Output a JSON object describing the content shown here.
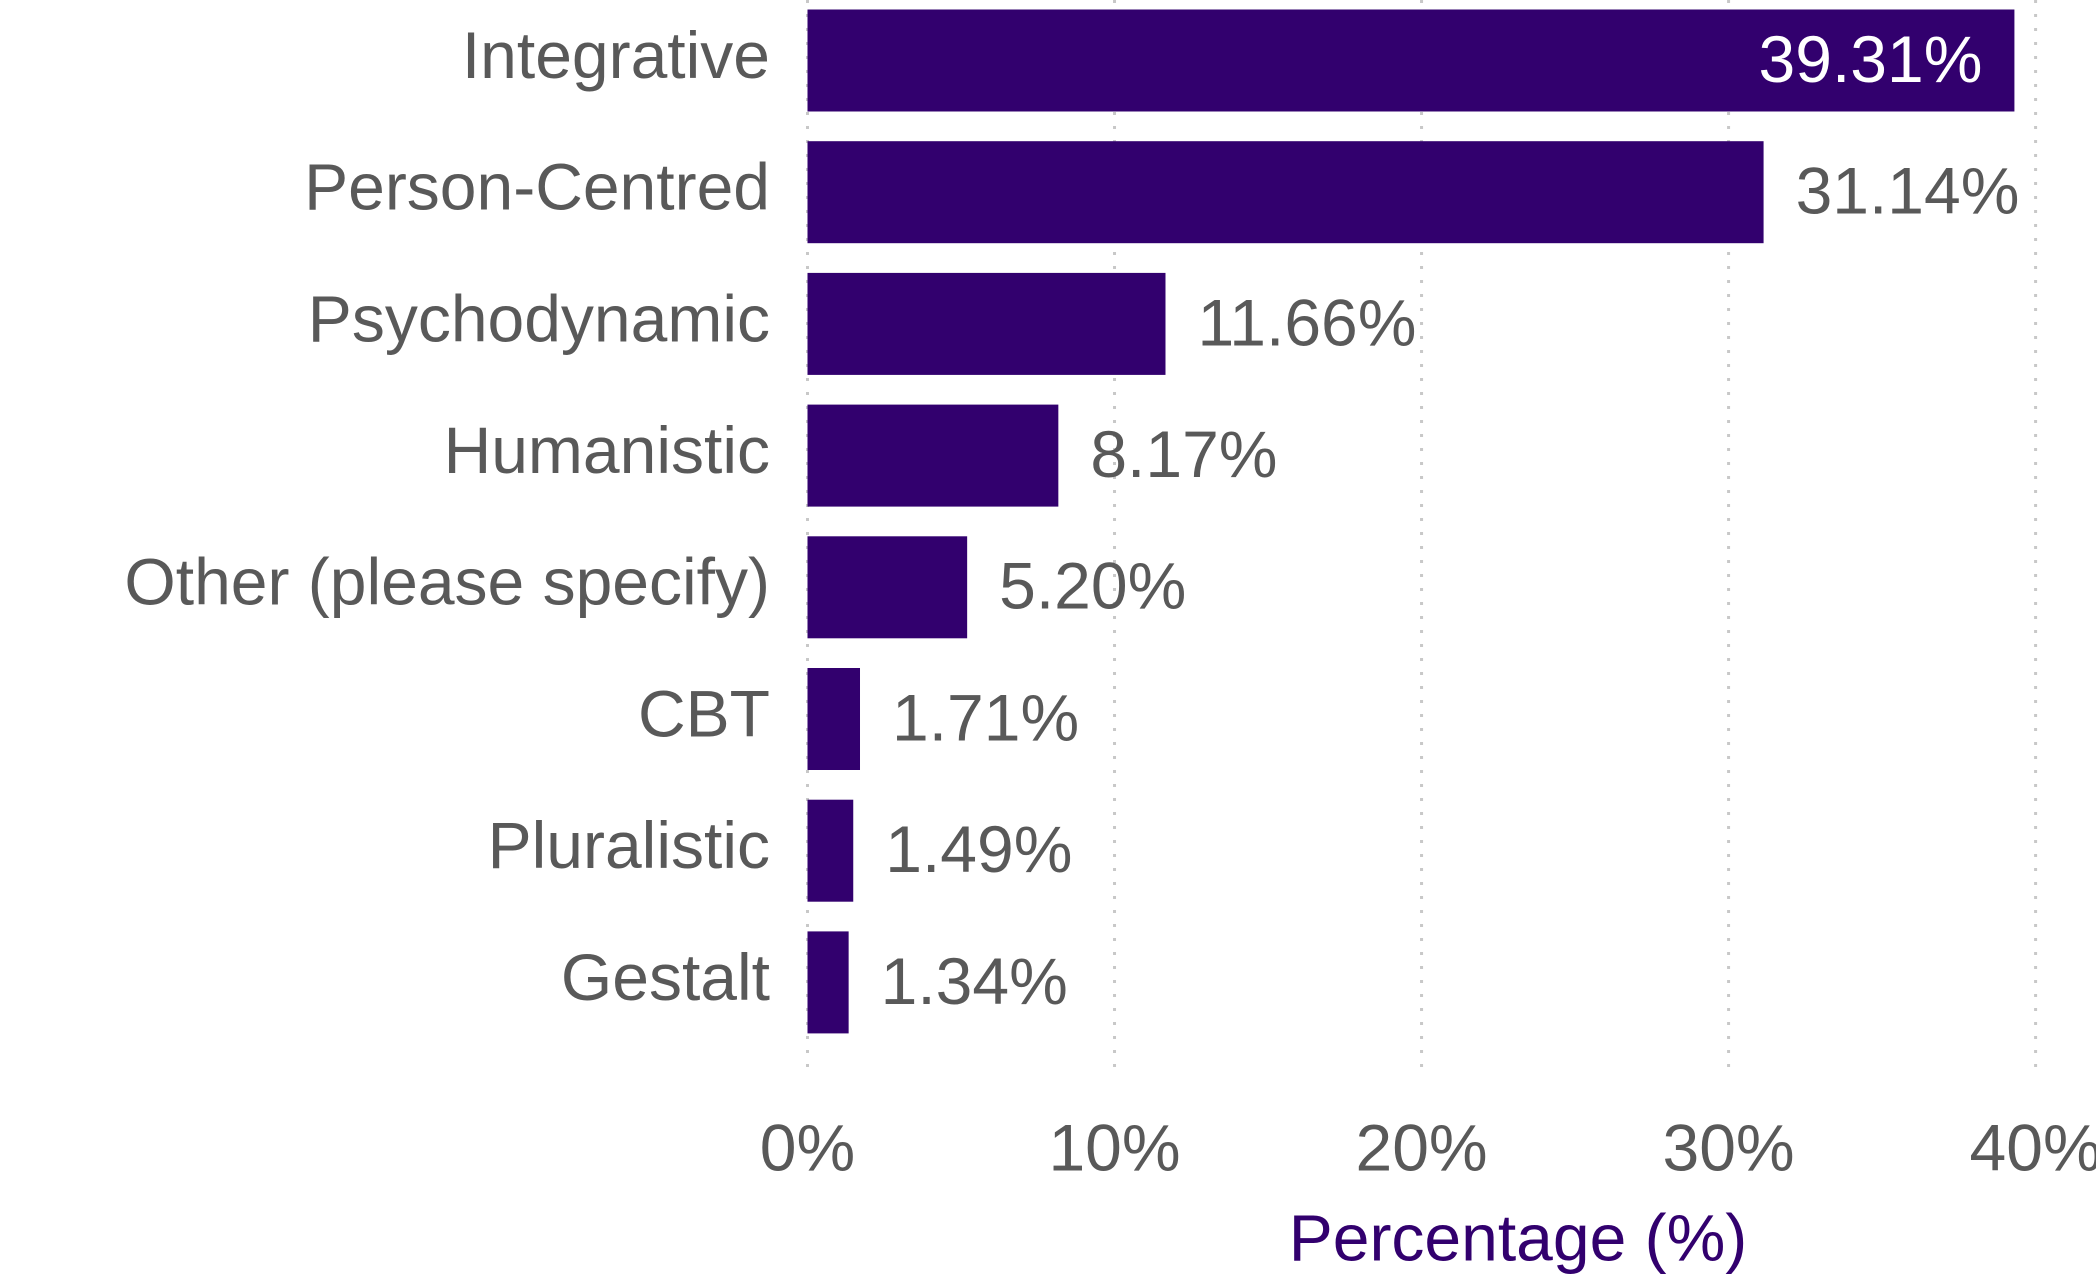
{
  "chart_data": {
    "type": "bar",
    "orientation": "horizontal",
    "categories": [
      "Integrative",
      "Person-Centred",
      "Psychodynamic",
      "Humanistic",
      "Other (please specify)",
      "CBT",
      "Pluralistic",
      "Gestalt"
    ],
    "values": [
      39.31,
      31.14,
      11.66,
      8.17,
      5.2,
      1.71,
      1.49,
      1.34
    ],
    "value_labels": [
      "39.31%",
      "31.14%",
      "11.66%",
      "8.17%",
      "5.20%",
      "1.71%",
      "1.49%",
      "1.34%"
    ],
    "color": "#32006e",
    "xlim": [
      0,
      40
    ],
    "xticks": [
      {
        "value": 0,
        "label": "0%"
      },
      {
        "value": 10,
        "label": "10%"
      },
      {
        "value": 20,
        "label": "20%"
      },
      {
        "value": 30,
        "label": "30%"
      },
      {
        "value": 40,
        "label": "40%"
      }
    ],
    "xlabel": "Percentage (%)",
    "grid": true
  }
}
